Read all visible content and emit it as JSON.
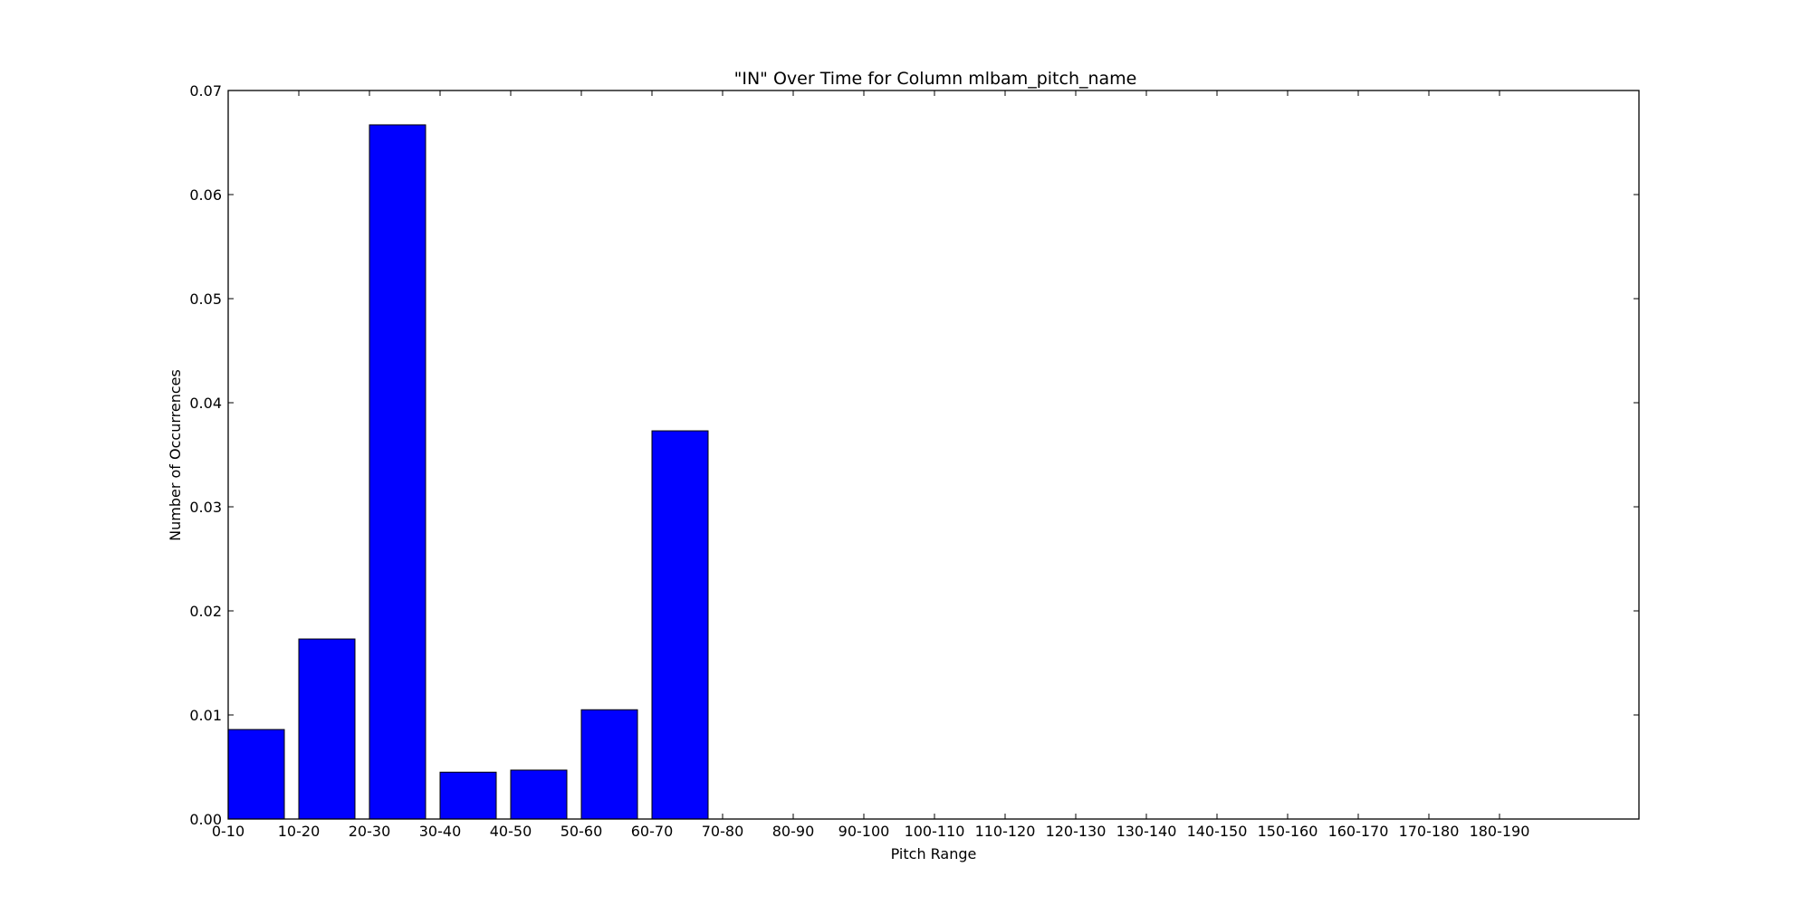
{
  "chart_data": {
    "type": "bar",
    "title": "\"IN\" Over Time for Column mlbam_pitch_name",
    "xlabel": "Pitch Range",
    "ylabel": "Number of Occurrences",
    "categories": [
      "0-10",
      "10-20",
      "20-30",
      "30-40",
      "40-50",
      "50-60",
      "60-70",
      "70-80",
      "80-90",
      "90-100",
      "100-110",
      "110-120",
      "120-130",
      "130-140",
      "140-150",
      "150-160",
      "160-170",
      "170-180",
      "180-190"
    ],
    "values": [
      0.0086,
      0.0173,
      0.0667,
      0.0045,
      0.0047,
      0.0105,
      0.0373,
      0,
      0,
      0,
      0,
      0,
      0,
      0,
      0,
      0,
      0,
      0,
      0
    ],
    "ylim": [
      0,
      0.07
    ],
    "yticks": [
      "0.00",
      "0.01",
      "0.02",
      "0.03",
      "0.04",
      "0.05",
      "0.06",
      "0.07"
    ],
    "bar_color": "#0000ff",
    "grid": false
  }
}
